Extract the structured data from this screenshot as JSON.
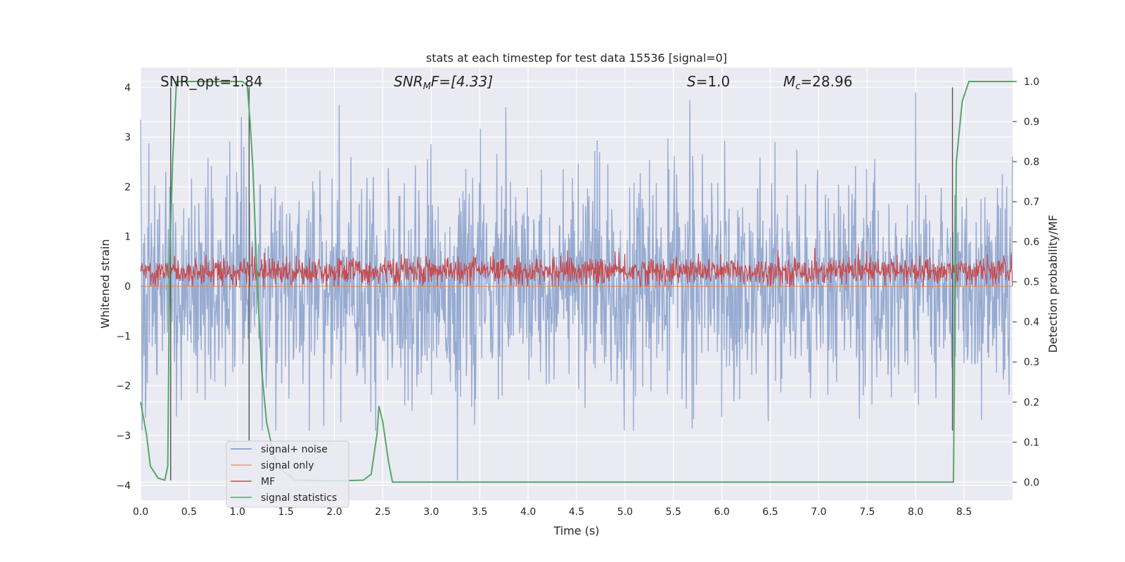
{
  "chart_data": {
    "type": "line",
    "title": "stats at each timestep for test data 15536 [signal=0]",
    "xlabel": "Time (s)",
    "ylabel": "Whitened strain",
    "y2label": "Detection probability/MF",
    "xlim": [
      0.0,
      9.0
    ],
    "ylim": [
      -4.3,
      4.4
    ],
    "y2lim": [
      -0.045,
      1.035
    ],
    "xticks": [
      "0.0",
      "0.5",
      "1.0",
      "1.5",
      "2.0",
      "2.5",
      "3.0",
      "3.5",
      "4.0",
      "4.5",
      "5.0",
      "5.5",
      "6.0",
      "6.5",
      "7.0",
      "7.5",
      "8.0",
      "8.5"
    ],
    "yticks": [
      "4",
      "3",
      "2",
      "1",
      "0",
      "−1",
      "−2",
      "−3",
      "−4"
    ],
    "y2ticks": [
      "1.0",
      "0.9",
      "0.8",
      "0.7",
      "0.6",
      "0.5",
      "0.4",
      "0.3",
      "0.2",
      "0.1",
      "0.0"
    ],
    "annotations": {
      "snr_opt": "SNR_opt=1.84",
      "snr_mf_sym": "SNR",
      "snr_mf_sub": "M",
      "snr_mf_rest": "F=[4.33]",
      "s_sym": "S",
      "s_rest": "=1.0",
      "mc_sym": "M",
      "mc_sub": "c",
      "mc_rest": "=28.96"
    },
    "legend": {
      "placement": "lower-left",
      "entries": [
        "signal+ noise",
        "signal only",
        "MF",
        "signal statistics"
      ]
    },
    "series": [
      {
        "name": "signal+ noise",
        "color": "#7b96c6",
        "kind": "dense-noise",
        "approx_envelope": [
          -2.9,
          3.7
        ],
        "notable_peaks": [
          [
            0.0,
            3.35
          ],
          [
            1.04,
            3.4
          ],
          [
            2.05,
            3.65
          ],
          [
            3.77,
            3.6
          ],
          [
            5.67,
            3.75
          ],
          [
            8.0,
            3.9
          ],
          [
            3.27,
            -3.9
          ]
        ]
      },
      {
        "name": "signal only",
        "color": "#dd8452",
        "values_constant": 0
      },
      {
        "name": "MF",
        "color": "#c44e52",
        "kind": "dense-noise",
        "approx_range": [
          0.0,
          0.95
        ]
      },
      {
        "name": "signal statistics",
        "color": "#55a868",
        "x": [
          0.0,
          0.06,
          0.1,
          0.18,
          0.25,
          0.28,
          0.3,
          0.33,
          0.37,
          0.5,
          0.7,
          1.0,
          1.05,
          1.1,
          1.13,
          1.16,
          1.2,
          1.25,
          1.3,
          1.4,
          1.6,
          2.0,
          2.3,
          2.38,
          2.44,
          2.46,
          2.5,
          2.56,
          2.6,
          2.75,
          3.0,
          4.0,
          4.4,
          5.0,
          6.0,
          7.0,
          8.0,
          8.38,
          8.39,
          8.42,
          8.48,
          8.55,
          8.7,
          9.0
        ],
        "y": [
          0.2,
          0.12,
          0.04,
          0.01,
          0.005,
          0.04,
          0.55,
          0.8,
          1.0,
          1.0,
          1.0,
          1.0,
          1.0,
          0.99,
          0.9,
          0.78,
          0.52,
          0.28,
          0.15,
          0.04,
          0.005,
          0.003,
          0.005,
          0.02,
          0.12,
          0.19,
          0.15,
          0.05,
          0.0,
          0.0,
          0.0,
          0.0,
          0.0,
          0.0,
          0.0,
          0.0,
          0.0,
          0.0,
          0.0,
          0.8,
          0.95,
          1.0,
          1.0,
          1.0
        ]
      }
    ],
    "vertical_markers": {
      "color": "#555555",
      "lines": [
        {
          "x": 0.31,
          "y_from": -3.9,
          "y_to": 4.0
        },
        {
          "x": 1.12,
          "y_from": -3.1,
          "y_to": 4.0
        },
        {
          "x": 8.38,
          "y_from": -2.9,
          "y_to": 4.0
        }
      ]
    }
  }
}
